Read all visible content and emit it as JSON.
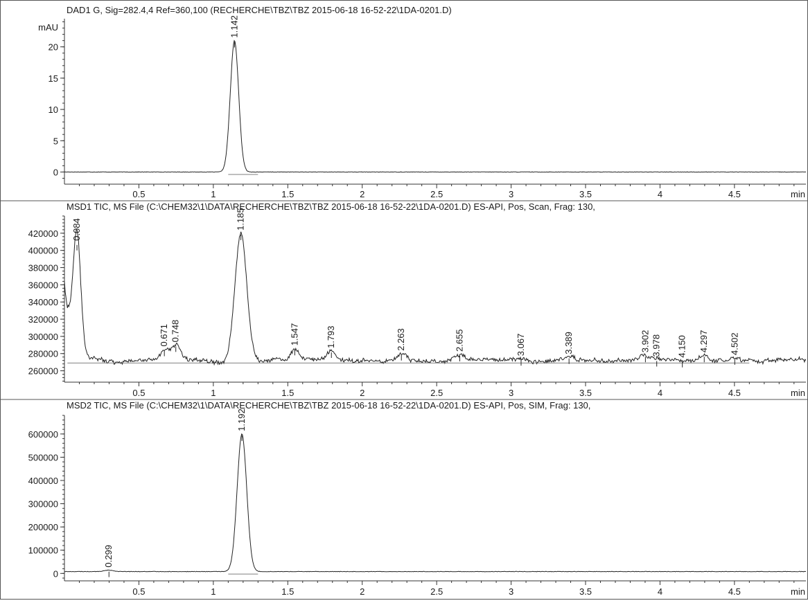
{
  "chart_data": [
    {
      "type": "line",
      "title": "DAD1 G, Sig=282.4,4 Ref=360,100 (RECHERCHE\\TBZ\\TBZ 2015-06-18 16-52-22\\1DA-0201.D)",
      "ylabel": "mAU",
      "xlabel": "min",
      "xlim": [
        0.0,
        4.98
      ],
      "ylim": [
        -1.5,
        24.5
      ],
      "x_ticks": [
        "0.5",
        "1",
        "1.5",
        "2",
        "2.5",
        "3",
        "3.5",
        "4",
        "4.5"
      ],
      "y_ticks": [
        "0",
        "5",
        "10",
        "15",
        "20"
      ],
      "baseline_level": 0.0,
      "peaks": [
        {
          "rt": 1.142,
          "label": "1.142",
          "height": 21.0,
          "width": 0.028
        }
      ]
    },
    {
      "type": "line",
      "title": "MSD1 TIC, MS File (C:\\CHEM32\\1\\DATA\\RECHERCHE\\TBZ\\TBZ 2015-06-18 16-52-22\\1DA-0201.D)     ES-API, Pos, Scan, Frag: 130,",
      "ylabel": "",
      "xlabel": "min",
      "xlim": [
        0.0,
        4.98
      ],
      "ylim": [
        250000,
        440000
      ],
      "x_ticks": [
        "0.5",
        "1",
        "1.5",
        "2",
        "2.5",
        "3",
        "3.5",
        "4",
        "4.5"
      ],
      "y_ticks": [
        "260000",
        "280000",
        "300000",
        "320000",
        "340000",
        "360000",
        "380000",
        "400000",
        "420000"
      ],
      "baseline_level": 272000,
      "peaks": [
        {
          "rt": 0.084,
          "label": "0.084",
          "height": 408000,
          "width": 0.025
        },
        {
          "rt": 0.671,
          "label": "0.671",
          "height": 285000,
          "width": 0.03
        },
        {
          "rt": 0.748,
          "label": "0.748",
          "height": 290000,
          "width": 0.03
        },
        {
          "rt": 1.185,
          "label": "1.185",
          "height": 420000,
          "width": 0.04
        },
        {
          "rt": 1.547,
          "label": "1.547",
          "height": 286000,
          "width": 0.03
        },
        {
          "rt": 1.793,
          "label": "1.793",
          "height": 283000,
          "width": 0.03
        },
        {
          "rt": 2.263,
          "label": "2.263",
          "height": 280000,
          "width": 0.03
        },
        {
          "rt": 2.655,
          "label": "2.655",
          "height": 279000,
          "width": 0.03
        },
        {
          "rt": 3.067,
          "label": "3.067",
          "height": 274000,
          "width": 0.03
        },
        {
          "rt": 3.389,
          "label": "3.389",
          "height": 276000,
          "width": 0.03
        },
        {
          "rt": 3.902,
          "label": "3.902",
          "height": 278000,
          "width": 0.03
        },
        {
          "rt": 3.978,
          "label": "3.978",
          "height": 273000,
          "width": 0.03
        },
        {
          "rt": 4.15,
          "label": "4.150",
          "height": 272000,
          "width": 0.03
        },
        {
          "rt": 4.297,
          "label": "4.297",
          "height": 278000,
          "width": 0.03
        },
        {
          "rt": 4.502,
          "label": "4.502",
          "height": 275000,
          "width": 0.03
        }
      ]
    },
    {
      "type": "line",
      "title": "MSD2 TIC, MS File (C:\\CHEM32\\1\\DATA\\RECHERCHE\\TBZ\\TBZ 2015-06-18 16-52-22\\1DA-0201.D)     ES-API, Pos, SIM, Frag: 130,",
      "ylabel": "",
      "xlabel": "min",
      "xlim": [
        0.0,
        4.98
      ],
      "ylim": [
        -20000,
        680000
      ],
      "x_ticks": [
        "0.5",
        "1",
        "1.5",
        "2",
        "2.5",
        "3",
        "3.5",
        "4",
        "4.5"
      ],
      "y_ticks": [
        "0",
        "100000",
        "200000",
        "300000",
        "400000",
        "500000",
        "600000"
      ],
      "baseline_level": 8000,
      "peaks": [
        {
          "rt": 0.299,
          "label": "0.299",
          "height": 14000,
          "width": 0.03
        },
        {
          "rt": 1.192,
          "label": "1.192",
          "height": 600000,
          "width": 0.032
        }
      ]
    }
  ]
}
